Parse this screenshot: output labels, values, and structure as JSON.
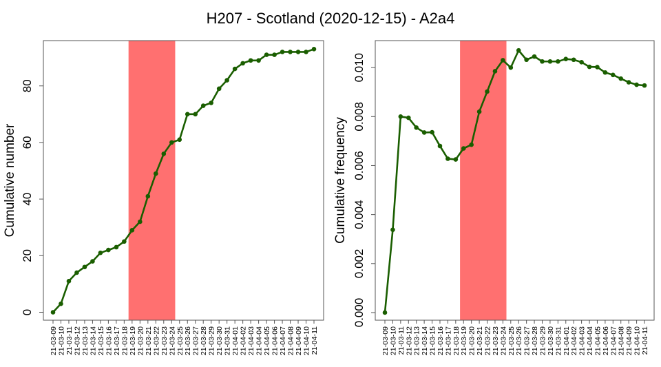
{
  "figure": {
    "title": "H207 - Scotland (2020-12-15) - A2a4"
  },
  "chart_data": [
    {
      "type": "line",
      "ylabel": "Cumulative number",
      "ylim": [
        -2.8,
        96
      ],
      "yticks": [
        0,
        20,
        40,
        60,
        80
      ],
      "yticklabels": [
        "0",
        "20",
        "40",
        "60",
        "80"
      ],
      "highlight": {
        "from": "21-03-19",
        "to": "21-03-24",
        "color": "#ff7070"
      },
      "line_color": "#1a5e00",
      "x": [
        "21-03-09",
        "21-03-10",
        "21-03-11",
        "21-03-12",
        "21-03-13",
        "21-03-14",
        "21-03-15",
        "21-03-16",
        "21-03-17",
        "21-03-18",
        "21-03-19",
        "21-03-20",
        "21-03-21",
        "21-03-22",
        "21-03-23",
        "21-03-24",
        "21-03-25",
        "21-03-26",
        "21-03-27",
        "21-03-28",
        "21-03-29",
        "21-03-30",
        "21-03-31",
        "21-04-01",
        "21-04-02",
        "21-04-03",
        "21-04-04",
        "21-04-05",
        "21-04-06",
        "21-04-07",
        "21-04-08",
        "21-04-09",
        "21-04-10",
        "21-04-11"
      ],
      "values": [
        0,
        3,
        11,
        14,
        16,
        18,
        21,
        22,
        23,
        25,
        29,
        32,
        41,
        49,
        56,
        60,
        61,
        70,
        70,
        73,
        74,
        79,
        82,
        86,
        88,
        89,
        89,
        91,
        91,
        92,
        92,
        92,
        92,
        93
      ],
      "grid": false
    },
    {
      "type": "line",
      "ylabel": "Cumulative frequency",
      "ylim": [
        -0.00031,
        0.0111
      ],
      "yticks": [
        0.0,
        0.002,
        0.004,
        0.006,
        0.008,
        0.01
      ],
      "yticklabels": [
        "0.000",
        "0.002",
        "0.004",
        "0.006",
        "0.008",
        "0.010"
      ],
      "highlight": {
        "from": "21-03-19",
        "to": "21-03-24",
        "color": "#ff7070"
      },
      "line_color": "#1a5e00",
      "x": [
        "21-03-09",
        "21-03-10",
        "21-03-11",
        "21-03-12",
        "21-03-13",
        "21-03-14",
        "21-03-15",
        "21-03-16",
        "21-03-17",
        "21-03-18",
        "21-03-19",
        "21-03-20",
        "21-03-21",
        "21-03-22",
        "21-03-23",
        "21-03-24",
        "21-03-25",
        "21-03-26",
        "21-03-27",
        "21-03-28",
        "21-03-29",
        "21-03-30",
        "21-03-31",
        "21-04-01",
        "21-04-02",
        "21-04-03",
        "21-04-04",
        "21-04-05",
        "21-04-06",
        "21-04-07",
        "21-04-08",
        "21-04-09",
        "21-04-10",
        "21-04-11"
      ],
      "values": [
        0.0,
        0.00338,
        0.008,
        0.00795,
        0.00755,
        0.00735,
        0.00736,
        0.0068,
        0.00628,
        0.00625,
        0.0067,
        0.00685,
        0.0082,
        0.00902,
        0.00985,
        0.0103,
        0.01,
        0.0107,
        0.01032,
        0.01045,
        0.01025,
        0.01025,
        0.01025,
        0.01035,
        0.01032,
        0.01022,
        0.01003,
        0.01002,
        0.0098,
        0.0097,
        0.00955,
        0.0094,
        0.0093,
        0.00927
      ],
      "grid": false
    }
  ]
}
